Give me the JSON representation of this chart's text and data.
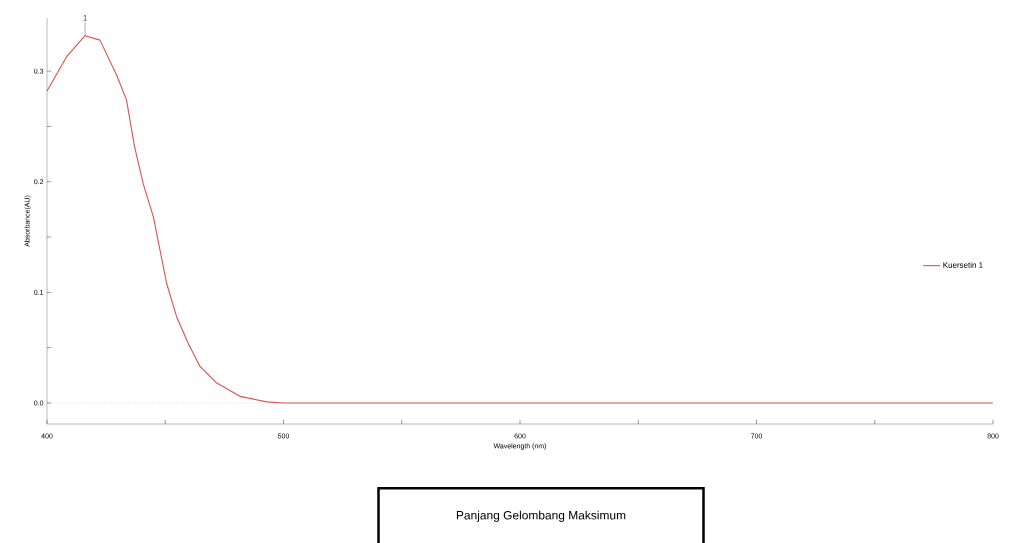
{
  "chart_data": {
    "type": "line",
    "xlabel": "Wavelength (nm)",
    "ylabel": "Absorbance(AU)",
    "x": [
      400,
      408.3,
      416.1,
      422.4,
      429.5,
      433.6,
      437,
      440.7,
      445,
      447.8,
      450.6,
      454.8,
      459.7,
      464.7,
      471.8,
      481.6,
      492.9,
      500,
      550,
      600,
      650,
      700,
      750,
      800
    ],
    "series": [
      {
        "name": "Kuersetin 1",
        "color": "#d9534f",
        "values": [
          0.282,
          0.313,
          0.332,
          0.328,
          0.296,
          0.274,
          0.232,
          0.198,
          0.168,
          0.138,
          0.108,
          0.078,
          0.054,
          0.033,
          0.018,
          0.006,
          0.001,
          0,
          0,
          0,
          0,
          0,
          0,
          0
        ]
      }
    ],
    "xlim": [
      400,
      800
    ],
    "ylim": [
      -0.019,
      0.348
    ],
    "xticks": [
      400,
      {
        "value": 450,
        "label": null
      },
      500,
      {
        "value": 550,
        "label": null
      },
      600,
      {
        "value": 650,
        "label": null
      },
      700,
      {
        "value": 750,
        "label": null
      },
      800
    ],
    "yticks": [
      {
        "value": 0,
        "label": "0.0"
      },
      {
        "value": 0.05,
        "label": null
      },
      0.1,
      {
        "value": 0.15,
        "label": null
      },
      0.2,
      {
        "value": 0.25,
        "label": null
      },
      0.3
    ],
    "ref_lines": [
      {
        "axis": "y",
        "value": 0,
        "color": "#666666",
        "line_style": "dotted"
      }
    ],
    "legend": "right",
    "line_style": "solid",
    "annotations": [
      {
        "text": "1",
        "x": 416.1,
        "y": 0.332
      },
      "Panjang Gelombang Maksimum"
    ]
  }
}
